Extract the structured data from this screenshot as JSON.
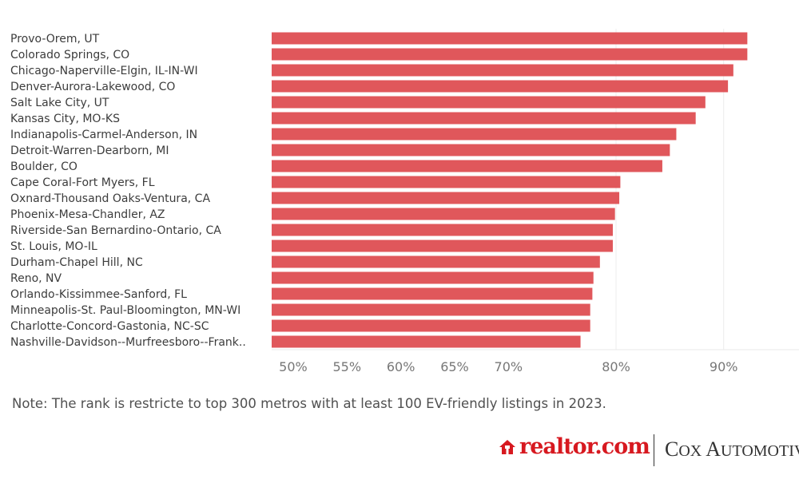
{
  "chart_data": {
    "type": "bar",
    "orientation": "horizontal",
    "categories": [
      "Provo-Orem, UT",
      "Colorado Springs, CO",
      "Chicago-Naperville-Elgin, IL-IN-WI",
      "Denver-Aurora-Lakewood, CO",
      "Salt Lake City, UT",
      "Kansas City, MO-KS",
      "Indianapolis-Carmel-Anderson, IN",
      "Detroit-Warren-Dearborn, MI",
      "Boulder, CO",
      "Cape Coral-Fort Myers, FL",
      "Oxnard-Thousand Oaks-Ventura, CA",
      "Phoenix-Mesa-Chandler, AZ",
      "Riverside-San Bernardino-Ontario, CA",
      "St. Louis, MO-IL",
      "Durham-Chapel Hill, NC",
      "Reno, NV",
      "Orlando-Kissimmee-Sanford, FL",
      "Minneapolis-St. Paul-Bloomington, MN-WI",
      "Charlotte-Concord-Gastonia, NC-SC",
      "Nashville-Davidson--Murfreesboro--Frank.."
    ],
    "values": [
      92.2,
      92.2,
      90.9,
      90.4,
      88.3,
      87.4,
      85.6,
      85.0,
      84.3,
      80.4,
      80.3,
      79.9,
      79.7,
      79.7,
      78.5,
      77.9,
      77.8,
      77.6,
      77.6,
      76.7
    ],
    "xlim": [
      48,
      97
    ],
    "xticks": [
      {
        "label": "50%",
        "value": 50
      },
      {
        "label": "55%",
        "value": 55
      },
      {
        "label": "60%",
        "value": 60
      },
      {
        "label": "65%",
        "value": 65
      },
      {
        "label": "70%",
        "value": 70
      },
      {
        "label": "80%",
        "value": 80
      },
      {
        "label": "90%",
        "value": 90
      }
    ],
    "gridlines": [
      80,
      90
    ],
    "bar_color": "#e0575b"
  },
  "note": "Note: The rank is restricte to top 300 metros with at least 100 EV-friendly listings in 2023.",
  "logos": {
    "realtor": "realtor.com",
    "cox_first": "C",
    "cox_rest": "OX ",
    "cox_a": "A",
    "cox_tail": "UTOMOTIVE"
  }
}
